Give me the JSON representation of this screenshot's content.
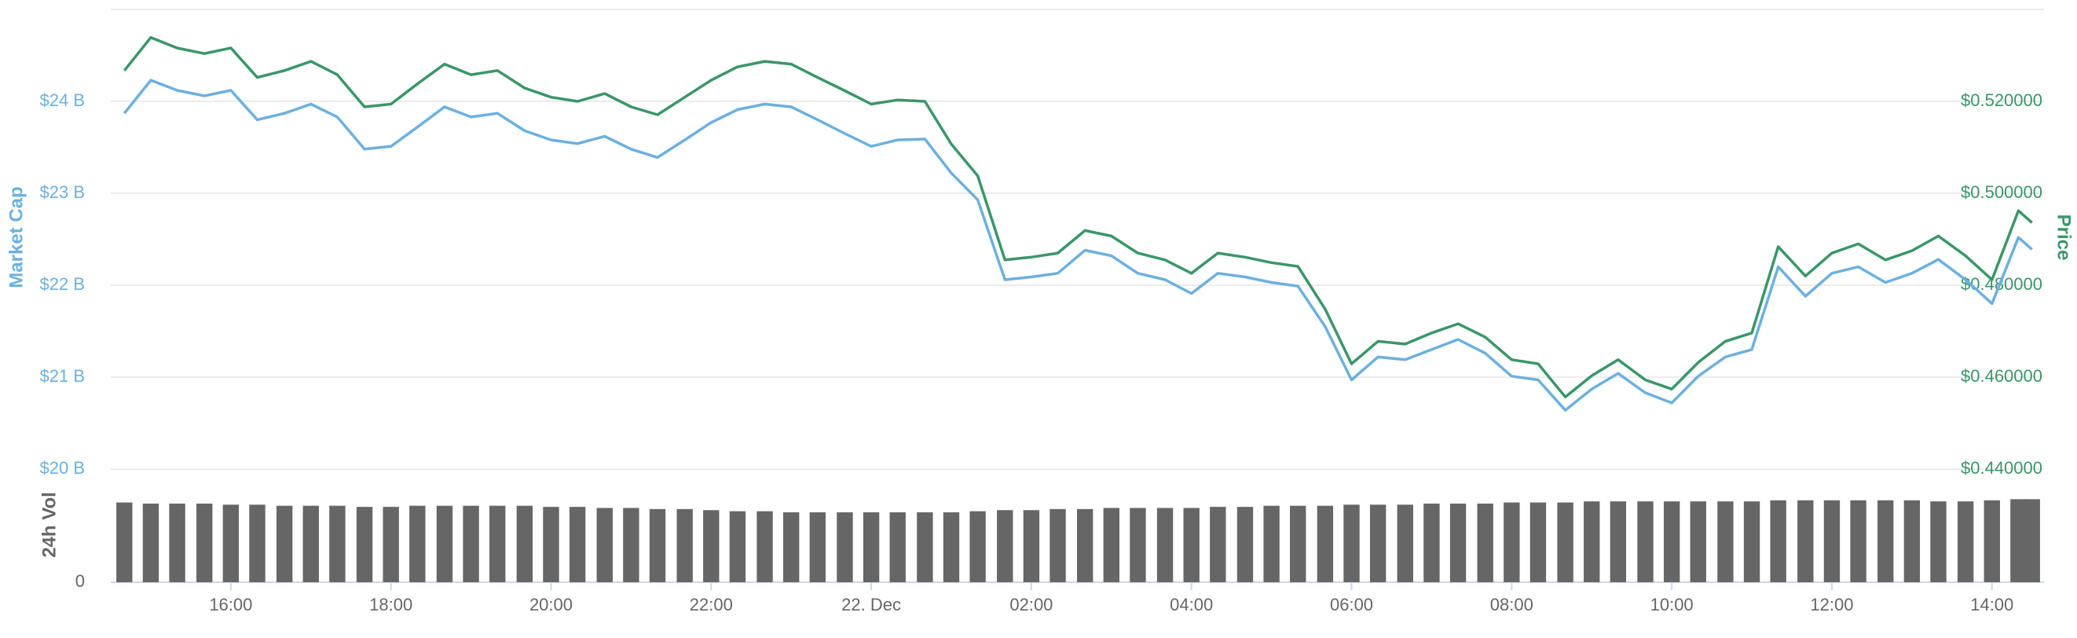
{
  "chart_data": {
    "type": "line",
    "x": [
      14.67,
      15,
      15.33,
      15.67,
      16,
      16.33,
      16.67,
      17,
      17.33,
      17.67,
      18,
      18.33,
      18.67,
      19,
      19.33,
      19.67,
      20,
      20.33,
      20.67,
      21,
      21.33,
      21.67,
      22,
      22.33,
      22.67,
      23,
      23.33,
      23.67,
      24,
      24.33,
      24.67,
      25,
      25.33,
      25.67,
      26,
      26.33,
      26.67,
      27,
      27.33,
      27.67,
      28,
      28.33,
      28.67,
      29,
      29.33,
      29.67,
      30,
      30.33,
      30.67,
      31,
      31.33,
      31.67,
      32,
      32.33,
      32.67,
      33,
      33.33,
      33.67,
      34,
      34.33,
      34.67,
      35,
      35.33,
      35.67,
      36,
      36.33,
      36.67,
      37,
      37.33,
      37.67,
      38,
      38.33,
      38.5
    ],
    "series": [
      {
        "name": "Market Cap",
        "color": "#6cb0e0",
        "axis": "y",
        "values": [
          23.87,
          24.23,
          24.12,
          24.06,
          24.12,
          23.8,
          23.87,
          23.97,
          23.83,
          23.48,
          23.51,
          23.72,
          23.94,
          23.83,
          23.87,
          23.68,
          23.58,
          23.54,
          23.62,
          23.48,
          23.39,
          23.58,
          23.77,
          23.91,
          23.97,
          23.94,
          23.8,
          23.65,
          23.51,
          23.58,
          23.59,
          23.22,
          22.93,
          22.06,
          22.09,
          22.13,
          22.38,
          22.32,
          22.13,
          22.06,
          21.91,
          22.13,
          22.09,
          22.03,
          21.99,
          21.55,
          20.97,
          21.22,
          21.19,
          21.3,
          21.41,
          21.26,
          21.01,
          20.97,
          20.64,
          20.87,
          21.04,
          20.83,
          20.72,
          21.01,
          21.22,
          21.3,
          22.2,
          21.88,
          22.13,
          22.2,
          22.03,
          22.13,
          22.28,
          22.06,
          21.8,
          22.52,
          22.39
        ]
      },
      {
        "name": "Price",
        "color": "#3a9669",
        "axis": "y2",
        "values": [
          0.5267,
          0.5339,
          0.5316,
          0.5304,
          0.5316,
          0.5252,
          0.5267,
          0.5287,
          0.5258,
          0.5188,
          0.5194,
          0.5238,
          0.5281,
          0.5258,
          0.5267,
          0.5229,
          0.5209,
          0.52,
          0.5217,
          0.5188,
          0.5171,
          0.5209,
          0.5246,
          0.5275,
          0.5287,
          0.5281,
          0.5252,
          0.5223,
          0.5194,
          0.5203,
          0.52,
          0.5107,
          0.5038,
          0.4855,
          0.4861,
          0.487,
          0.4919,
          0.4907,
          0.487,
          0.4855,
          0.4826,
          0.487,
          0.4861,
          0.4849,
          0.4841,
          0.4748,
          0.4629,
          0.4678,
          0.4672,
          0.4696,
          0.4716,
          0.4687,
          0.4638,
          0.4629,
          0.4557,
          0.4603,
          0.4638,
          0.4594,
          0.4574,
          0.4632,
          0.4678,
          0.4696,
          0.4884,
          0.482,
          0.487,
          0.489,
          0.4855,
          0.4875,
          0.4907,
          0.4864,
          0.4812,
          0.4962,
          0.4936
        ]
      },
      {
        "name": "24h Vol",
        "color": "#666666",
        "axis": "y3",
        "type": "bar",
        "values": [
          0.73,
          0.72,
          0.72,
          0.72,
          0.71,
          0.71,
          0.7,
          0.7,
          0.7,
          0.69,
          0.69,
          0.7,
          0.7,
          0.7,
          0.7,
          0.7,
          0.69,
          0.69,
          0.68,
          0.68,
          0.67,
          0.67,
          0.66,
          0.65,
          0.65,
          0.64,
          0.64,
          0.64,
          0.64,
          0.64,
          0.64,
          0.64,
          0.65,
          0.66,
          0.66,
          0.67,
          0.67,
          0.68,
          0.68,
          0.68,
          0.68,
          0.69,
          0.69,
          0.7,
          0.7,
          0.7,
          0.71,
          0.71,
          0.71,
          0.72,
          0.72,
          0.72,
          0.73,
          0.73,
          0.73,
          0.74,
          0.74,
          0.74,
          0.74,
          0.74,
          0.74,
          0.74,
          0.75,
          0.75,
          0.75,
          0.75,
          0.75,
          0.75,
          0.74,
          0.74,
          0.75,
          0.76,
          0.76
        ]
      }
    ],
    "xlim": [
      14.5,
      38.65
    ],
    "xticks": [
      {
        "value": 16,
        "label": "16:00"
      },
      {
        "value": 18,
        "label": "18:00"
      },
      {
        "value": 20,
        "label": "20:00"
      },
      {
        "value": 22,
        "label": "22:00"
      },
      {
        "value": 24,
        "label": "22. Dec"
      },
      {
        "value": 26,
        "label": "02:00"
      },
      {
        "value": 28,
        "label": "04:00"
      },
      {
        "value": 30,
        "label": "06:00"
      },
      {
        "value": 32,
        "label": "08:00"
      },
      {
        "value": 34,
        "label": "10:00"
      },
      {
        "value": 36,
        "label": "12:00"
      },
      {
        "value": 38,
        "label": "14:00"
      }
    ],
    "ylim": [
      20,
      25
    ],
    "yticks": [
      {
        "value": 20,
        "label": "$20 B"
      },
      {
        "value": 21,
        "label": "$21 B"
      },
      {
        "value": 22,
        "label": "$22 B"
      },
      {
        "value": 23,
        "label": "$23 B"
      },
      {
        "value": 24,
        "label": "$24 B"
      }
    ],
    "y2lim": [
      0.44,
      0.54
    ],
    "y2ticks": [
      {
        "value": 0.44,
        "label": "$0.440000"
      },
      {
        "value": 0.46,
        "label": "$0.460000"
      },
      {
        "value": 0.48,
        "label": "$0.480000"
      },
      {
        "value": 0.5,
        "label": "$0.500000"
      },
      {
        "value": 0.52,
        "label": "$0.520000"
      }
    ],
    "y3lim": [
      0,
      1
    ],
    "y3ticks": [
      0
    ],
    "grid": true
  }
}
